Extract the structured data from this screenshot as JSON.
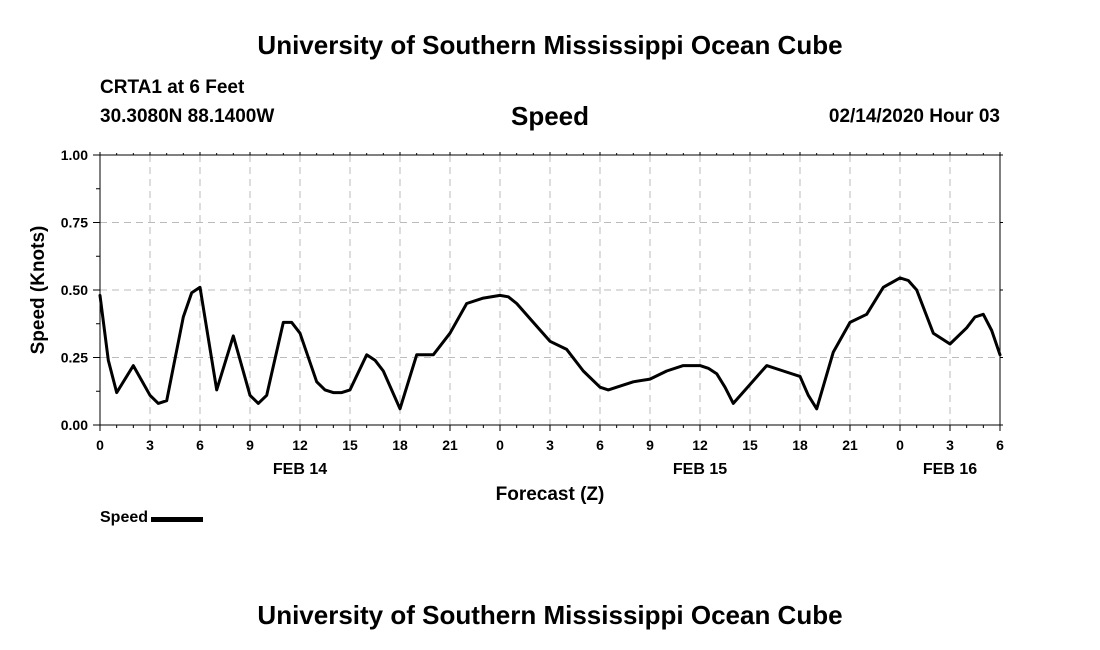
{
  "header": {
    "org_title": "University of Southern Mississippi Ocean Cube",
    "station_name": "CRTA1 at 6 Feet",
    "station_coords": "30.3080N 88.1400W",
    "chart_title": "Speed",
    "issue_time": "02/14/2020 Hour 03"
  },
  "footer": {
    "org_title": "University of Southern Mississippi Ocean Cube"
  },
  "legend": {
    "label": "Speed",
    "color": "#000000"
  },
  "chart_data": {
    "type": "line",
    "title": "Speed",
    "xlabel": "Forecast (Z)",
    "ylabel": "Speed (Knots)",
    "xlim": [
      0,
      54
    ],
    "ylim": [
      0,
      1
    ],
    "y_ticks": [
      0,
      0.25,
      0.5,
      0.75,
      1.0
    ],
    "y_tick_labels": [
      "0.00",
      "0.25",
      "0.50",
      "0.75",
      "1.00"
    ],
    "x_ticks": [
      0,
      3,
      6,
      9,
      12,
      15,
      18,
      21,
      24,
      27,
      30,
      33,
      36,
      39,
      42,
      45,
      48,
      51,
      54
    ],
    "x_tick_labels": [
      "0",
      "3",
      "6",
      "9",
      "12",
      "15",
      "18",
      "21",
      "0",
      "3",
      "6",
      "9",
      "12",
      "15",
      "18",
      "21",
      "0",
      "3",
      "6"
    ],
    "date_labels": [
      {
        "x": 12,
        "label": "FEB 14"
      },
      {
        "x": 36,
        "label": "FEB 15"
      },
      {
        "x": 51,
        "label": "FEB 16"
      }
    ],
    "grid": true,
    "series": [
      {
        "name": "Speed",
        "color": "#000000",
        "x": [
          0,
          0.5,
          1,
          2,
          3,
          3.5,
          4,
          5,
          5.5,
          6,
          7,
          8,
          9,
          9.5,
          10,
          11,
          11.5,
          12,
          13,
          13.5,
          14,
          14.5,
          15,
          16,
          16.5,
          17,
          18,
          19,
          20,
          21,
          22,
          23,
          24,
          24.5,
          25,
          26,
          27,
          28,
          29,
          30,
          30.5,
          31,
          32,
          33,
          34,
          35,
          36,
          36.5,
          37,
          37.5,
          38,
          39,
          40,
          41,
          42,
          42.5,
          43,
          44,
          45,
          46,
          47,
          48,
          48.5,
          49,
          50,
          51,
          52,
          52.5,
          53,
          53.5,
          54
        ],
        "values": [
          0.48,
          0.24,
          0.12,
          0.22,
          0.11,
          0.08,
          0.09,
          0.4,
          0.49,
          0.51,
          0.13,
          0.33,
          0.11,
          0.08,
          0.11,
          0.38,
          0.38,
          0.34,
          0.16,
          0.13,
          0.12,
          0.12,
          0.13,
          0.26,
          0.24,
          0.2,
          0.06,
          0.26,
          0.26,
          0.34,
          0.45,
          0.47,
          0.48,
          0.475,
          0.45,
          0.38,
          0.31,
          0.28,
          0.2,
          0.14,
          0.13,
          0.14,
          0.16,
          0.17,
          0.2,
          0.22,
          0.22,
          0.21,
          0.19,
          0.14,
          0.08,
          0.15,
          0.22,
          0.2,
          0.18,
          0.11,
          0.06,
          0.27,
          0.38,
          0.41,
          0.51,
          0.545,
          0.535,
          0.5,
          0.34,
          0.3,
          0.36,
          0.4,
          0.41,
          0.35,
          0.26
        ]
      }
    ]
  }
}
